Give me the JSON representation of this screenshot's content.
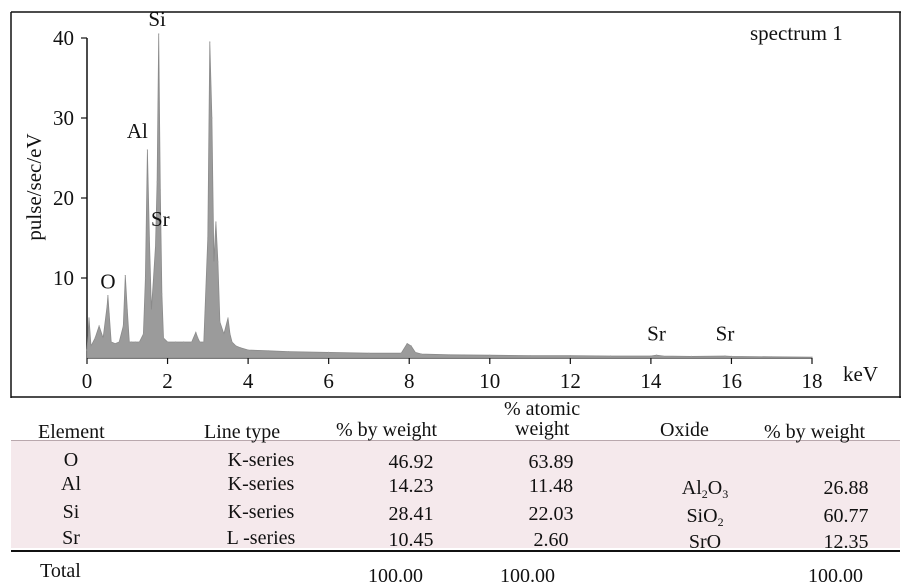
{
  "chart_data": {
    "type": "area",
    "title": "",
    "xlabel": "keV",
    "ylabel": "pulse/sec/eV",
    "xlim": [
      0,
      18
    ],
    "ylim": [
      0,
      40
    ],
    "x_ticks": [
      "0",
      "2",
      "4",
      "6",
      "8",
      "10",
      "12",
      "14",
      "16",
      "18"
    ],
    "y_ticks": [
      "10",
      "20",
      "30",
      "40"
    ],
    "legend": "spectrum 1",
    "grid": false,
    "series": [
      {
        "name": "spectrum 1",
        "x": [
          0.0,
          0.05,
          0.1,
          0.2,
          0.3,
          0.4,
          0.5,
          0.52,
          0.55,
          0.6,
          0.7,
          0.8,
          0.9,
          0.95,
          1.0,
          1.05,
          1.1,
          1.2,
          1.3,
          1.4,
          1.45,
          1.5,
          1.55,
          1.6,
          1.65,
          1.7,
          1.74,
          1.78,
          1.82,
          1.86,
          1.9,
          2.0,
          2.2,
          2.4,
          2.6,
          2.7,
          2.75,
          2.8,
          2.9,
          3.0,
          3.05,
          3.1,
          3.15,
          3.2,
          3.25,
          3.3,
          3.4,
          3.5,
          3.55,
          3.6,
          3.7,
          3.8,
          4.0,
          4.5,
          5.0,
          6.0,
          7.0,
          7.8,
          7.95,
          8.05,
          8.15,
          8.3,
          9.0,
          10.0,
          11.0,
          12.0,
          13.0,
          14.0,
          14.14,
          14.3,
          15.0,
          15.84,
          16.0,
          17.0,
          18.0
        ],
        "values": [
          1.0,
          5.0,
          1.5,
          2.5,
          4.0,
          2.5,
          6.5,
          7.8,
          5.5,
          2.0,
          1.8,
          2.0,
          4.0,
          10.3,
          6.0,
          2.0,
          2.0,
          2.0,
          2.0,
          3.0,
          10.0,
          26.0,
          15.0,
          6.0,
          10.0,
          14.0,
          22.0,
          40.5,
          21.0,
          8.0,
          2.5,
          2.0,
          2.0,
          2.0,
          2.0,
          3.2,
          2.5,
          2.0,
          2.0,
          15.0,
          39.5,
          30.0,
          12.0,
          17.0,
          12.0,
          4.5,
          3.0,
          5.0,
          3.0,
          2.0,
          1.5,
          1.3,
          1.0,
          0.9,
          0.8,
          0.7,
          0.6,
          0.6,
          1.8,
          1.5,
          0.7,
          0.5,
          0.4,
          0.35,
          0.3,
          0.3,
          0.25,
          0.25,
          0.35,
          0.25,
          0.2,
          0.25,
          0.2,
          0.15,
          0.1
        ]
      }
    ],
    "peak_labels": [
      {
        "text": "Si",
        "x": 1.74,
        "y": 41.5
      },
      {
        "text": "Al",
        "x": 1.25,
        "y": 27.5
      },
      {
        "text": "Sr",
        "x": 1.82,
        "y": 16.5
      },
      {
        "text": "O",
        "x": 0.52,
        "y": 8.7
      },
      {
        "text": "Sr",
        "x": 14.14,
        "y": 2.2
      },
      {
        "text": "Sr",
        "x": 15.84,
        "y": 2.2
      }
    ]
  },
  "table": {
    "headers": {
      "element": "Element",
      "line_type": "Line type",
      "pct_weight": "% by weight",
      "atomic_line1": "% atomic",
      "atomic_line2": "weight",
      "oxide": "Oxide",
      "oxide_pct_weight": "% by weight"
    },
    "rows": [
      {
        "element": "O",
        "line_type": "K-series",
        "pct_weight": "46.92",
        "atomic_weight": "63.89",
        "oxide_main": "",
        "oxide_sub": "",
        "oxide_sub2": "",
        "oxide_sub2_num": "",
        "oxide_pct": ""
      },
      {
        "element": "Al",
        "line_type": "K-series",
        "pct_weight": "14.23",
        "atomic_weight": "11.48",
        "oxide_main": "Al",
        "oxide_sub": "2",
        "oxide_sub2": "O",
        "oxide_sub2_num": "3",
        "oxide_pct": "26.88"
      },
      {
        "element": "Si",
        "line_type": "K-series",
        "pct_weight": "28.41",
        "atomic_weight": "22.03",
        "oxide_main": "SiO",
        "oxide_sub": "2",
        "oxide_sub2": "",
        "oxide_sub2_num": "",
        "oxide_pct": "60.77"
      },
      {
        "element": "Sr",
        "line_type": "L -series",
        "pct_weight": "10.45",
        "atomic_weight": "2.60",
        "oxide_main": "SrO",
        "oxide_sub": "",
        "oxide_sub2": "",
        "oxide_sub2_num": "",
        "oxide_pct": "12.35"
      }
    ],
    "total": {
      "label": "Total",
      "pct_weight": "100.00",
      "atomic_weight": "100.00",
      "oxide_pct": "100.00"
    },
    "colors": {
      "highlight_band": "#f5e9ec",
      "spectrum_fill": "#9b9b9b"
    }
  }
}
